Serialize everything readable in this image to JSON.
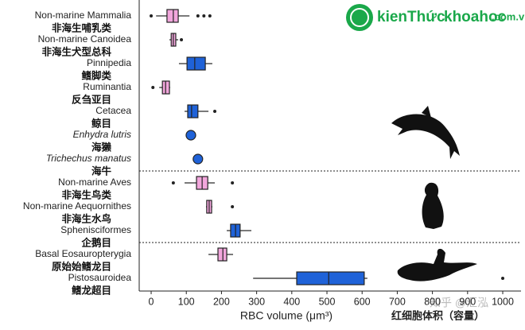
{
  "chart_data": {
    "type": "box",
    "xlabel": "RBC volume (μm³)",
    "xlabel_zh": "红细胞体积（容量）",
    "xlim": [
      -34,
      1052
    ],
    "xticks": [
      0,
      100,
      200,
      300,
      400,
      500,
      600,
      700,
      800,
      900,
      1000
    ],
    "separators": [
      6.5,
      9.5
    ],
    "watermarks": [
      "kienThức",
      "khoahoc",
      ".com.vn",
      "知乎 @汇泓"
    ],
    "boxes": [
      {
        "label": "Non-marine Mammalia",
        "label_zh": "非海生哺乳类",
        "color": "#f2a6dc",
        "whislo": 14,
        "q1": 45,
        "med": 63,
        "q3": 77,
        "whishi": 109,
        "fliers": [
          0,
          133,
          150,
          167
        ]
      },
      {
        "label": "Non-marine Canoidea",
        "label_zh": "非海生犬型总科",
        "color": "#f2a6dc",
        "whislo": 52,
        "q1": 57,
        "med": 63,
        "q3": 70,
        "whishi": 77,
        "fliers": [
          86
        ]
      },
      {
        "label": "Pinnipedia",
        "label_zh": "鳍脚类",
        "color": "#1f62d8",
        "whislo": 79,
        "q1": 102,
        "med": 124,
        "q3": 154,
        "whishi": 174,
        "fliers": []
      },
      {
        "label": "Ruminantia",
        "label_zh": "反刍亚目",
        "color": "#f2a6dc",
        "whislo": 23,
        "q1": 32,
        "med": 41,
        "q3": 52,
        "whishi": 54,
        "fliers": [
          5
        ]
      },
      {
        "label": "Cetacea",
        "label_zh": "鲸目",
        "color": "#1f62d8",
        "whislo": 95,
        "q1": 104,
        "med": 115,
        "q3": 133,
        "whishi": 163,
        "fliers": [
          181
        ]
      },
      {
        "label": "Enhydra lutris",
        "label_zh": "海獭",
        "color": "#1f62d8",
        "italic": true,
        "points": [
          113
        ]
      },
      {
        "label": "Trichechus manatus",
        "label_zh": "海牛",
        "color": "#1f62d8",
        "italic": true,
        "points": [
          133
        ]
      },
      {
        "label": "Non-marine Aves",
        "label_zh": "非海生鸟类",
        "color": "#f2a6dc",
        "whislo": 95,
        "q1": 129,
        "med": 145,
        "q3": 161,
        "whishi": 181,
        "fliers": [
          63,
          231
        ]
      },
      {
        "label": "Non-marine Aequornithes",
        "label_zh": "非海生水鸟",
        "color": "#f2a6dc",
        "whislo": 156,
        "q1": 158,
        "med": 165,
        "q3": 172,
        "whishi": 174,
        "fliers": [
          231
        ]
      },
      {
        "label": "Sphenisciformes",
        "label_zh": "企鹅目",
        "color": "#1f62d8",
        "whislo": 215,
        "q1": 226,
        "med": 240,
        "q3": 253,
        "whishi": 285,
        "fliers": []
      },
      {
        "label": "Basal Eosauropterygia",
        "label_zh": "原始始鳍龙目",
        "color": "#f2a6dc",
        "whislo": 163,
        "q1": 190,
        "med": 204,
        "q3": 215,
        "whishi": 233,
        "fliers": []
      },
      {
        "label": "Pistosauroidea",
        "label_zh": "鳍龙超目",
        "color": "#1f62d8",
        "whislo": 290,
        "q1": 414,
        "med": 505,
        "q3": 606,
        "whishi": 615,
        "fliers": [
          1000
        ]
      }
    ]
  }
}
